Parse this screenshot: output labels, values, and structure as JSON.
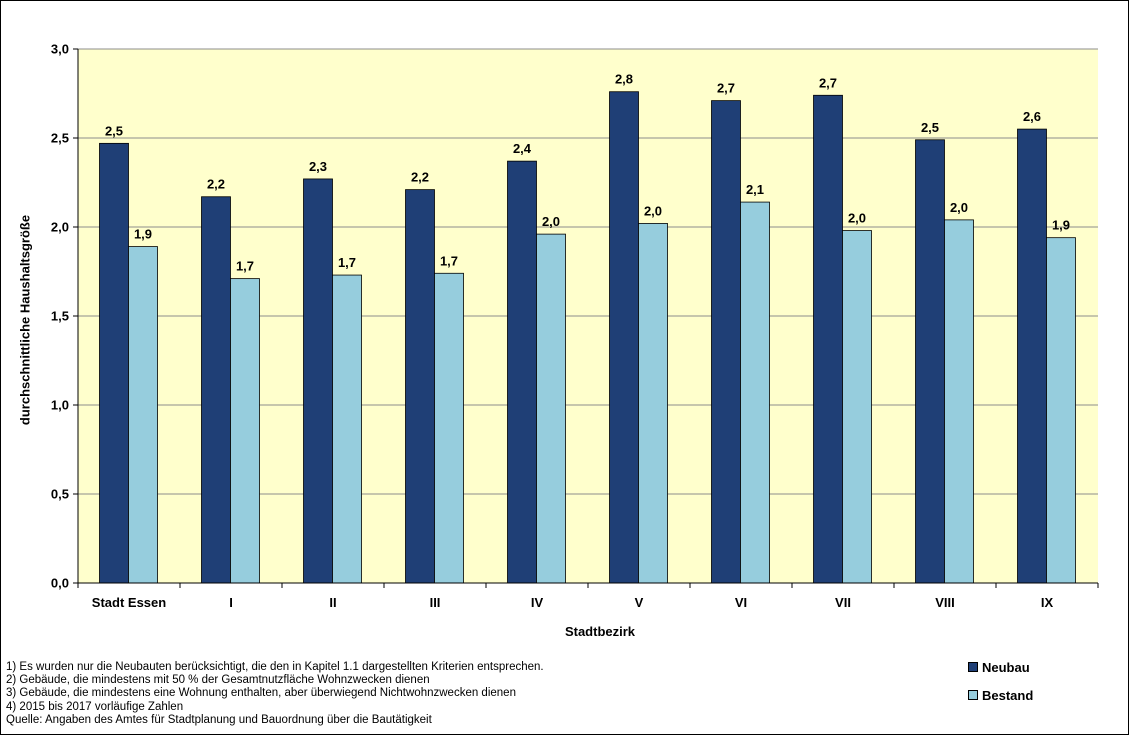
{
  "chart_data": {
    "type": "bar",
    "categories": [
      "Stadt Essen",
      "I",
      "II",
      "III",
      "IV",
      "V",
      "VI",
      "VII",
      "VIII",
      "IX"
    ],
    "series": [
      {
        "name": "Neubau",
        "color": "#1f3f76",
        "values": [
          2.47,
          2.17,
          2.27,
          2.21,
          2.37,
          2.76,
          2.71,
          2.74,
          2.49,
          2.55
        ],
        "labels": [
          "2,5",
          "2,2",
          "2,3",
          "2,2",
          "2,4",
          "2,8",
          "2,7",
          "2,7",
          "2,5",
          "2,6"
        ]
      },
      {
        "name": "Bestand",
        "color": "#96cddd",
        "values": [
          1.89,
          1.71,
          1.73,
          1.74,
          1.96,
          2.02,
          2.14,
          1.98,
          2.04,
          1.94
        ],
        "labels": [
          "1,9",
          "1,7",
          "1,7",
          "1,7",
          "2,0",
          "2,0",
          "2,1",
          "2,0",
          "2,0",
          "1,9"
        ]
      }
    ],
    "ylim": [
      0,
      3
    ],
    "yticks": [
      "0,0",
      "0,5",
      "1,0",
      "1,5",
      "2,0",
      "2,5",
      "3,0"
    ],
    "ylabel": "durchschnittliche Haushaltsgröße",
    "xlabel": "Stadtbezirk",
    "plot_background": "#ffffcc",
    "grid": true,
    "legend": "bottom-right"
  },
  "footnotes": [
    "1) Es wurden nur die Neubauten berücksichtigt, die den in Kapitel 1.1 dargestellten Kriterien entsprechen.",
    "2) Gebäude, die mindestens mit 50 % der Gesamtnutzfläche Wohnzwecken dienen",
    "3) Gebäude, die mindestens eine Wohnung enthalten, aber überwiegend Nichtwohnzwecken dienen",
    "4) 2015 bis 2017 vorläufige Zahlen",
    "Quelle: Angaben des Amtes für Stadtplanung und Bauordnung über die Bautätigkeit"
  ],
  "legend": [
    {
      "label": "Neubau",
      "color": "#1f3f76"
    },
    {
      "label": "Bestand",
      "color": "#96cddd"
    }
  ]
}
